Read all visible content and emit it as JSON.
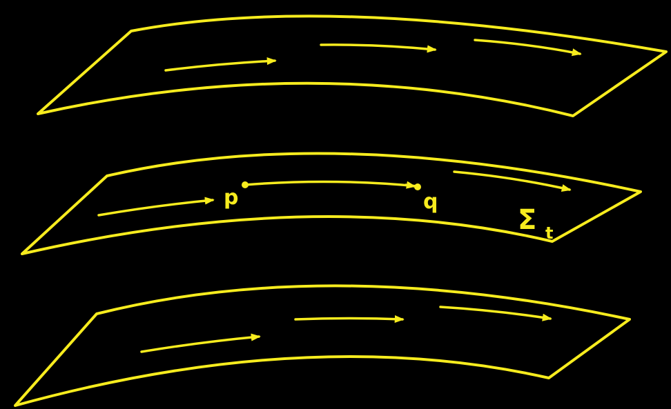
{
  "diagram": {
    "point_start": "p",
    "point_end": "q",
    "surface_label": {
      "symbol": "Σ",
      "subscript": "t"
    }
  }
}
